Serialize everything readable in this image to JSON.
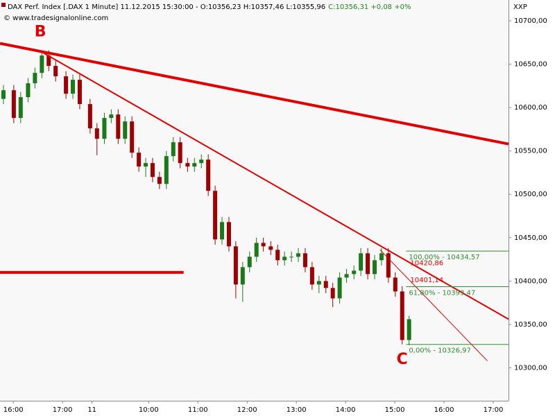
{
  "chart_data": {
    "type": "candlestick",
    "title": "DAX Perf. Index [.DAX  1 Minute] 11.12.2015 15:30:00 - O:10356,23 H:10357,46 L:10355,96",
    "title_change": "C:10356,31 +0,08 +0%",
    "subtitle": "© www.tradesignalonline.com",
    "axis_label": "XXP",
    "up_color": "#1a7a1a",
    "down_color": "#a00000",
    "line_color": "#e00000",
    "fib_color": "#2e8b2e",
    "xlim": [
      -0.27,
      10.06
    ],
    "ylim": [
      10262,
      10724
    ],
    "yticks": [
      {
        "value": 10700,
        "label": "10700,00"
      },
      {
        "value": 10650,
        "label": "10650,00"
      },
      {
        "value": 10600,
        "label": "10600,00"
      },
      {
        "value": 10550,
        "label": "10550,00"
      },
      {
        "value": 10500,
        "label": "10500,00"
      },
      {
        "value": 10450,
        "label": "10450,00"
      },
      {
        "value": 10400,
        "label": "10400,00"
      },
      {
        "value": 10350,
        "label": "10350,00"
      },
      {
        "value": 10300,
        "label": "10300,00"
      }
    ],
    "xticks": [
      {
        "value": 0,
        "label": "16:00"
      },
      {
        "value": 1,
        "label": "17:00"
      },
      {
        "value": 1.6,
        "label": "11"
      },
      {
        "value": 2.75,
        "label": "10:00"
      },
      {
        "value": 3.75,
        "label": "11:00"
      },
      {
        "value": 4.75,
        "label": "12:00"
      },
      {
        "value": 5.75,
        "label": "13:00"
      },
      {
        "value": 6.75,
        "label": "14:00"
      },
      {
        "value": 7.75,
        "label": "15:00"
      },
      {
        "value": 8.75,
        "label": "16:00"
      },
      {
        "value": 9.75,
        "label": "17:00"
      }
    ],
    "x": [
      -0.2,
      0.01,
      0.15,
      0.3,
      0.44,
      0.58,
      0.72,
      0.86,
      1.07,
      1.21,
      1.35,
      1.56,
      1.7,
      1.85,
      1.99,
      2.13,
      2.27,
      2.41,
      2.55,
      2.69,
      2.83,
      2.97,
      3.11,
      3.25,
      3.39,
      3.54,
      3.68,
      3.82,
      3.96,
      4.1,
      4.24,
      4.38,
      4.52,
      4.66,
      4.8,
      4.94,
      5.08,
      5.23,
      5.37,
      5.51,
      5.65,
      5.79,
      5.93,
      6.07,
      6.21,
      6.35,
      6.49,
      6.63,
      6.77,
      6.92,
      7.06,
      7.2,
      7.34,
      7.48,
      7.62,
      7.76,
      7.9,
      8.04
    ],
    "open": [
      10610,
      10620,
      10588,
      10612,
      10628,
      10640,
      10660,
      10648,
      10636,
      10616,
      10632,
      10604,
      10576,
      10564,
      10588,
      10592,
      10564,
      10584,
      10548,
      10532,
      10536,
      10520,
      10512,
      10544,
      10560,
      10536,
      10532,
      10536,
      10540,
      10504,
      10448,
      10468,
      10440,
      10396,
      10416,
      10428,
      10444,
      10440,
      10436,
      10424,
      10428,
      10428,
      10432,
      10416,
      10396,
      10400,
      10392,
      10380,
      10404,
      10408,
      10412,
      10432,
      10408,
      10424,
      10432,
      10404,
      10388,
      10332
    ],
    "high": [
      10626,
      10626,
      10618,
      10634,
      10646,
      10666,
      10666,
      10654,
      10642,
      10638,
      10638,
      10610,
      10582,
      10594,
      10598,
      10598,
      10590,
      10590,
      10554,
      10542,
      10542,
      10526,
      10550,
      10566,
      10566,
      10542,
      10542,
      10546,
      10546,
      10510,
      10474,
      10474,
      10446,
      10422,
      10434,
      10450,
      10450,
      10446,
      10442,
      10434,
      10434,
      10438,
      10438,
      10422,
      10406,
      10406,
      10398,
      10410,
      10414,
      10418,
      10438,
      10438,
      10430,
      10438,
      10438,
      10410,
      10394,
      10360
    ],
    "low": [
      10604,
      10582,
      10582,
      10606,
      10622,
      10634,
      10642,
      10630,
      10610,
      10610,
      10598,
      10570,
      10545,
      10558,
      10582,
      10558,
      10558,
      10542,
      10526,
      10520,
      10514,
      10506,
      10506,
      10538,
      10530,
      10526,
      10526,
      10530,
      10498,
      10442,
      10442,
      10434,
      10380,
      10376,
      10410,
      10422,
      10434,
      10430,
      10418,
      10418,
      10422,
      10422,
      10410,
      10390,
      10386,
      10386,
      10370,
      10374,
      10398,
      10402,
      10406,
      10402,
      10402,
      10418,
      10398,
      10382,
      10327,
      10326
    ],
    "close": [
      10620,
      10588,
      10612,
      10628,
      10640,
      10660,
      10648,
      10636,
      10616,
      10632,
      10604,
      10576,
      10564,
      10588,
      10592,
      10564,
      10584,
      10548,
      10532,
      10536,
      10520,
      10512,
      10544,
      10560,
      10536,
      10532,
      10536,
      10540,
      10504,
      10448,
      10468,
      10440,
      10396,
      10416,
      10428,
      10444,
      10440,
      10436,
      10424,
      10428,
      10428,
      10432,
      10416,
      10396,
      10400,
      10392,
      10380,
      10404,
      10408,
      10412,
      10432,
      10408,
      10424,
      10432,
      10404,
      10388,
      10332,
      10356
    ],
    "trend_lines": [
      {
        "x": [
          -0.27,
          10.06
        ],
        "y": [
          10674,
          10558
        ],
        "style": "bold"
      },
      {
        "x": [
          0.58,
          10.06
        ],
        "y": [
          10664,
          10356
        ],
        "style": "thin"
      },
      {
        "x": [
          7.45,
          9.63
        ],
        "y": [
          10436,
          10308
        ],
        "style": "hair"
      },
      {
        "x": [
          -0.27,
          3.46
        ],
        "y": [
          10410,
          10410
        ],
        "style": "bold"
      }
    ],
    "fib_levels": [
      {
        "value": 10434.57,
        "label": "100,00% - 10434,57"
      },
      {
        "value": 10393.47,
        "label": "61,80% - 10393,47"
      },
      {
        "value": 10326.97,
        "label": "0,00% - 10326,97"
      }
    ],
    "fib_start": 7.98,
    "price_labels": [
      {
        "value": 10420.86,
        "label": "10420,86"
      },
      {
        "value": 10401.14,
        "label": "10401,14"
      }
    ],
    "points": [
      {
        "label": "B",
        "x": 0.55,
        "y": 10687
      },
      {
        "label": "C",
        "x": 7.9,
        "y": 10309
      }
    ]
  }
}
